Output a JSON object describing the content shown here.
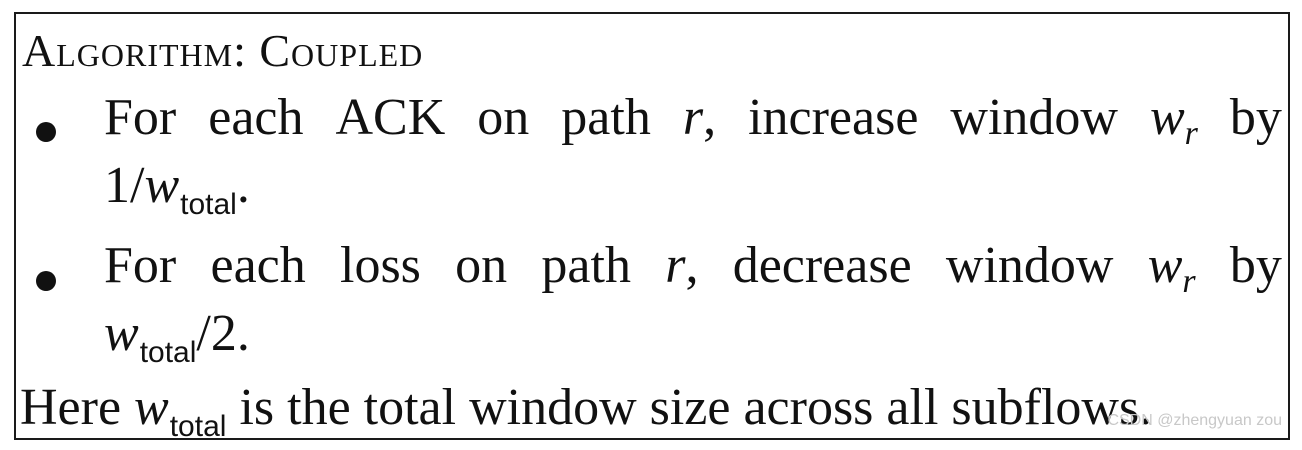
{
  "algorithm": {
    "title": "Algorithm: Coupled",
    "bullet1": {
      "words": [
        "For",
        "each",
        "ACK",
        "on",
        "path"
      ],
      "path_var": "r",
      "comma": ",",
      "action_words": [
        "increase",
        "window"
      ],
      "window_var": "w",
      "window_sub": "r",
      "by": "by",
      "line2_prefix": "1/",
      "total_var": "w",
      "total_sub": "total",
      "line2_suffix": "."
    },
    "bullet2": {
      "words": [
        "For",
        "each",
        "loss",
        "on",
        "path"
      ],
      "path_var": "r",
      "comma": ",",
      "action_words": [
        "decrease",
        "window"
      ],
      "window_var": "w",
      "window_sub": "r",
      "by": "by",
      "total_var": "w",
      "total_sub": "total",
      "line2_suffix": "/2."
    },
    "note": {
      "prefix": "Here",
      "total_var": "w",
      "total_sub": "total",
      "suffix": "is the total window size across all subflows."
    }
  },
  "watermark": "CSDN @zhengyuan zou"
}
